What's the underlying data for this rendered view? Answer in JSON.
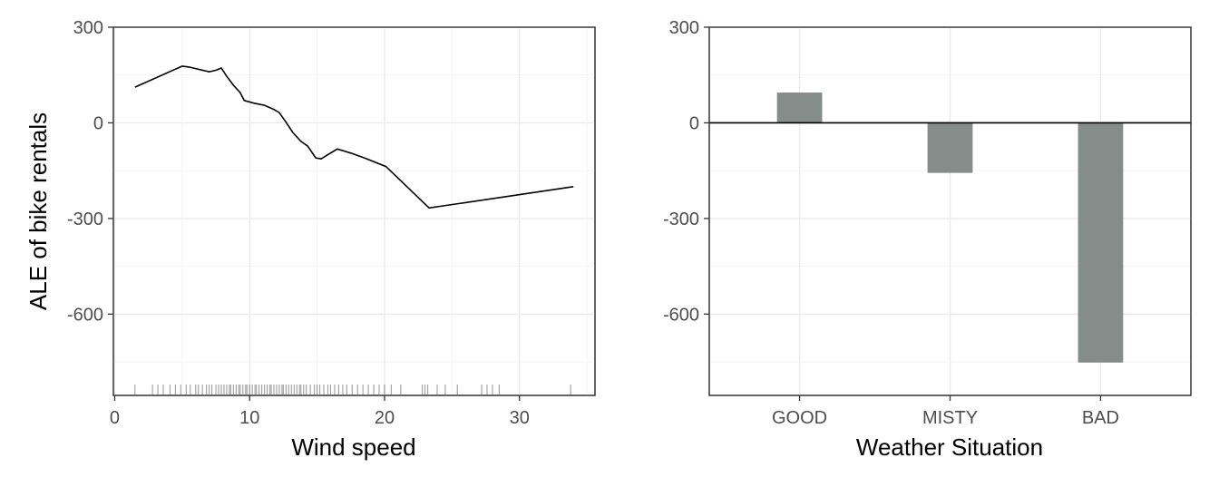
{
  "colors": {
    "line": "#000000",
    "bar": "#868c8a",
    "grid_major": "#ebebeb",
    "grid_minor": "#f2f2f2",
    "panel_border": "#333333",
    "tick_text": "#4d4d4d",
    "rug": "#000000"
  },
  "chart_data": [
    {
      "type": "line",
      "xlabel": "Wind speed",
      "ylabel": "ALE of bike rentals",
      "xlim": [
        -0.1,
        35.6
      ],
      "ylim": [
        -855,
        300
      ],
      "x_ticks": [
        0,
        10,
        20,
        30
      ],
      "x_tick_labels": [
        "0",
        "10",
        "20",
        "30"
      ],
      "y_ticks": [
        300,
        0,
        -300,
        -600
      ],
      "y_tick_labels": [
        "300",
        "0",
        "-300",
        "-600"
      ],
      "grid": true,
      "series": [
        {
          "x": [
            1.5,
            5.0,
            5.5,
            7.0,
            7.5,
            7.9,
            8.3,
            8.8,
            9.3,
            9.6,
            10.3,
            11.1,
            11.8,
            12.2,
            12.7,
            13.2,
            13.8,
            14.3,
            14.9,
            15.3,
            15.8,
            16.5,
            17.5,
            18.5,
            20.1,
            23.3,
            34.0
          ],
          "y": [
            112,
            178,
            175,
            160,
            165,
            172,
            146,
            118,
            95,
            70,
            62,
            55,
            42,
            32,
            2,
            -30,
            -58,
            -73,
            -110,
            -113,
            -100,
            -82,
            -95,
            -110,
            -137,
            -267,
            -200
          ]
        }
      ],
      "rug": [
        1.5,
        2.8,
        3.2,
        3.6,
        4.1,
        4.5,
        4.9,
        5.3,
        5.6,
        6.0,
        6.2,
        6.5,
        6.8,
        7.0,
        7.2,
        7.5,
        7.7,
        7.9,
        8.1,
        8.3,
        8.5,
        8.6,
        8.8,
        9.0,
        9.2,
        9.3,
        9.5,
        9.7,
        9.8,
        10.0,
        10.2,
        10.4,
        10.5,
        10.7,
        10.9,
        11.1,
        11.3,
        11.5,
        11.6,
        11.8,
        12.0,
        12.2,
        12.4,
        12.5,
        12.7,
        12.9,
        13.1,
        13.3,
        13.5,
        13.7,
        13.8,
        14.0,
        14.2,
        14.5,
        14.8,
        15.0,
        15.2,
        15.5,
        15.8,
        16.0,
        16.3,
        16.6,
        16.9,
        17.2,
        17.6,
        18.0,
        18.4,
        18.8,
        19.2,
        19.6,
        20.0,
        20.5,
        21.2,
        22.8,
        23.0,
        23.2,
        23.9,
        24.5,
        25.4,
        27.2,
        27.6,
        28.0,
        28.5,
        33.8
      ]
    },
    {
      "type": "bar",
      "xlabel": "Weather Situation",
      "ylabel": "",
      "categories": [
        "GOOD",
        "MISTY",
        "BAD"
      ],
      "values": [
        95,
        -157,
        -752
      ],
      "ylim": [
        -855,
        300
      ],
      "y_ticks": [
        300,
        0,
        -300,
        -600
      ],
      "y_tick_labels": [
        "300",
        "0",
        "-300",
        "-600"
      ],
      "grid": true,
      "zero_line": true
    }
  ]
}
